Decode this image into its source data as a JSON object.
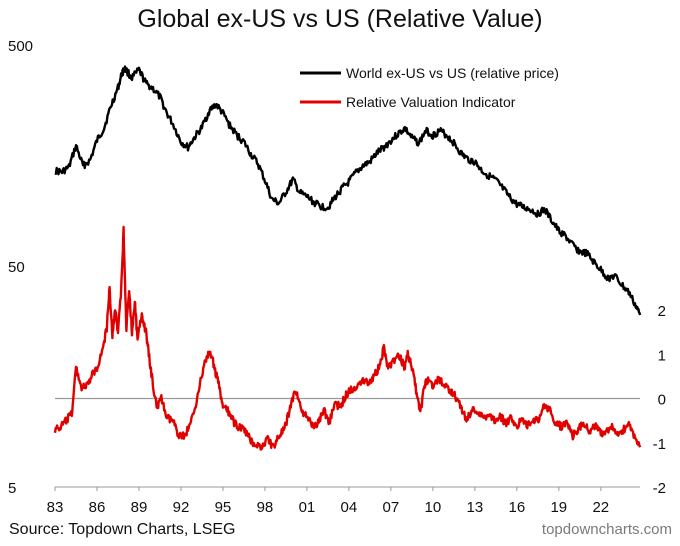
{
  "chart_data": {
    "type": "line",
    "title": "Global ex-US vs US (Relative Value)",
    "source": "Source: Topdown Charts, LSEG",
    "watermark": "topdowncharts.com",
    "x_axis": {
      "ticks": [
        "83",
        "86",
        "89",
        "92",
        "95",
        "98",
        "01",
        "04",
        "07",
        "10",
        "13",
        "16",
        "19",
        "22"
      ],
      "range": [
        1983,
        2024.8
      ]
    },
    "y_left": {
      "scale": "log",
      "range": [
        5,
        500
      ],
      "ticks": [
        "5",
        "50",
        "500"
      ]
    },
    "y_right": {
      "scale": "linear",
      "range": [
        -2,
        2
      ],
      "ticks": [
        "2",
        "1",
        "0",
        "-1",
        "-2"
      ],
      "zero_line": true
    },
    "legend_position": "top-right",
    "series": [
      {
        "name": "World ex-US vs US (relative price)",
        "color": "#000000",
        "axis": "left",
        "points": [
          [
            1983.0,
            135
          ],
          [
            1983.5,
            133
          ],
          [
            1984.0,
            140
          ],
          [
            1984.5,
            175
          ],
          [
            1985.0,
            142
          ],
          [
            1985.5,
            150
          ],
          [
            1986.0,
            185
          ],
          [
            1986.5,
            210
          ],
          [
            1987.0,
            265
          ],
          [
            1987.5,
            320
          ],
          [
            1987.8,
            375
          ],
          [
            1988.0,
            390
          ],
          [
            1988.5,
            355
          ],
          [
            1989.0,
            385
          ],
          [
            1989.5,
            335
          ],
          [
            1990.0,
            318
          ],
          [
            1990.5,
            290
          ],
          [
            1991.0,
            245
          ],
          [
            1991.5,
            215
          ],
          [
            1992.0,
            182
          ],
          [
            1992.5,
            172
          ],
          [
            1993.0,
            192
          ],
          [
            1993.5,
            212
          ],
          [
            1994.0,
            250
          ],
          [
            1994.5,
            270
          ],
          [
            1995.0,
            245
          ],
          [
            1995.5,
            215
          ],
          [
            1996.0,
            195
          ],
          [
            1996.5,
            182
          ],
          [
            1997.0,
            160
          ],
          [
            1997.5,
            145
          ],
          [
            1998.0,
            122
          ],
          [
            1998.5,
            100
          ],
          [
            1999.0,
            96
          ],
          [
            1999.5,
            108
          ],
          [
            2000.0,
            123
          ],
          [
            2000.5,
            107
          ],
          [
            2001.0,
            103
          ],
          [
            2001.5,
            97
          ],
          [
            2002.0,
            93
          ],
          [
            2002.5,
            92
          ],
          [
            2003.0,
            102
          ],
          [
            2003.5,
            112
          ],
          [
            2004.0,
            120
          ],
          [
            2004.5,
            132
          ],
          [
            2005.0,
            142
          ],
          [
            2005.5,
            148
          ],
          [
            2006.0,
            162
          ],
          [
            2006.5,
            172
          ],
          [
            2007.0,
            185
          ],
          [
            2007.5,
            198
          ],
          [
            2008.0,
            210
          ],
          [
            2008.5,
            190
          ],
          [
            2009.0,
            180
          ],
          [
            2009.5,
            205
          ],
          [
            2010.0,
            195
          ],
          [
            2010.5,
            205
          ],
          [
            2011.0,
            195
          ],
          [
            2011.5,
            180
          ],
          [
            2012.0,
            162
          ],
          [
            2012.5,
            152
          ],
          [
            2013.0,
            148
          ],
          [
            2013.5,
            135
          ],
          [
            2014.0,
            128
          ],
          [
            2014.5,
            122
          ],
          [
            2015.0,
            112
          ],
          [
            2015.5,
            102
          ],
          [
            2016.0,
            95
          ],
          [
            2016.5,
            92
          ],
          [
            2017.0,
            90
          ],
          [
            2017.5,
            86
          ],
          [
            2018.0,
            90
          ],
          [
            2018.5,
            80
          ],
          [
            2019.0,
            72
          ],
          [
            2019.5,
            68
          ],
          [
            2020.0,
            62
          ],
          [
            2020.5,
            58
          ],
          [
            2021.0,
            57
          ],
          [
            2021.5,
            52
          ],
          [
            2022.0,
            48
          ],
          [
            2022.5,
            44
          ],
          [
            2023.0,
            45
          ],
          [
            2023.5,
            41
          ],
          [
            2024.0,
            38
          ],
          [
            2024.5,
            33
          ],
          [
            2024.8,
            30
          ]
        ]
      },
      {
        "name": "Relative Valuation Indicator",
        "color": "#e00000",
        "axis": "right",
        "points": [
          [
            1983.0,
            -0.7
          ],
          [
            1983.4,
            -0.65
          ],
          [
            1983.8,
            -0.5
          ],
          [
            1984.2,
            -0.35
          ],
          [
            1984.5,
            0.7
          ],
          [
            1984.9,
            0.25
          ],
          [
            1985.3,
            0.28
          ],
          [
            1985.7,
            0.55
          ],
          [
            1986.0,
            0.7
          ],
          [
            1986.4,
            1.1
          ],
          [
            1986.7,
            1.6
          ],
          [
            1986.9,
            2.5
          ],
          [
            1987.1,
            1.4
          ],
          [
            1987.3,
            2.0
          ],
          [
            1987.5,
            1.5
          ],
          [
            1987.7,
            2.3
          ],
          [
            1987.9,
            3.8
          ],
          [
            1988.1,
            1.6
          ],
          [
            1988.3,
            2.4
          ],
          [
            1988.5,
            1.5
          ],
          [
            1988.7,
            2.2
          ],
          [
            1988.9,
            1.3
          ],
          [
            1989.2,
            1.9
          ],
          [
            1989.5,
            1.5
          ],
          [
            1989.7,
            1.0
          ],
          [
            1990.0,
            0.3
          ],
          [
            1990.3,
            -0.2
          ],
          [
            1990.6,
            0.0
          ],
          [
            1991.0,
            -0.45
          ],
          [
            1991.4,
            -0.5
          ],
          [
            1991.8,
            -0.8
          ],
          [
            1992.2,
            -0.85
          ],
          [
            1992.6,
            -0.65
          ],
          [
            1993.0,
            -0.2
          ],
          [
            1993.4,
            0.4
          ],
          [
            1993.8,
            0.9
          ],
          [
            1994.1,
            1.05
          ],
          [
            1994.4,
            0.7
          ],
          [
            1994.7,
            0.3
          ],
          [
            1995.0,
            -0.2
          ],
          [
            1995.4,
            -0.3
          ],
          [
            1995.8,
            -0.55
          ],
          [
            1996.2,
            -0.65
          ],
          [
            1996.6,
            -0.75
          ],
          [
            1997.0,
            -0.95
          ],
          [
            1997.4,
            -1.05
          ],
          [
            1997.8,
            -1.1
          ],
          [
            1998.2,
            -0.9
          ],
          [
            1998.6,
            -1.1
          ],
          [
            1999.0,
            -0.85
          ],
          [
            1999.4,
            -0.7
          ],
          [
            1999.8,
            -0.2
          ],
          [
            2000.2,
            0.2
          ],
          [
            2000.6,
            -0.25
          ],
          [
            2001.0,
            -0.45
          ],
          [
            2001.4,
            -0.6
          ],
          [
            2001.8,
            -0.55
          ],
          [
            2002.2,
            -0.25
          ],
          [
            2002.6,
            -0.55
          ],
          [
            2003.0,
            -0.1
          ],
          [
            2003.4,
            -0.2
          ],
          [
            2003.8,
            0.1
          ],
          [
            2004.2,
            0.2
          ],
          [
            2004.6,
            0.3
          ],
          [
            2005.0,
            0.45
          ],
          [
            2005.4,
            0.35
          ],
          [
            2005.8,
            0.5
          ],
          [
            2006.2,
            0.75
          ],
          [
            2006.5,
            1.15
          ],
          [
            2006.8,
            0.7
          ],
          [
            2007.2,
            0.85
          ],
          [
            2007.6,
            0.95
          ],
          [
            2008.0,
            0.7
          ],
          [
            2008.2,
            1.05
          ],
          [
            2008.5,
            0.7
          ],
          [
            2008.8,
            0.2
          ],
          [
            2009.1,
            -0.35
          ],
          [
            2009.4,
            0.3
          ],
          [
            2009.7,
            0.45
          ],
          [
            2010.0,
            0.3
          ],
          [
            2010.4,
            0.45
          ],
          [
            2010.8,
            0.3
          ],
          [
            2011.2,
            0.2
          ],
          [
            2011.6,
            0.05
          ],
          [
            2012.0,
            -0.2
          ],
          [
            2012.4,
            -0.5
          ],
          [
            2012.8,
            -0.25
          ],
          [
            2013.2,
            -0.3
          ],
          [
            2013.6,
            -0.45
          ],
          [
            2014.0,
            -0.35
          ],
          [
            2014.4,
            -0.5
          ],
          [
            2014.8,
            -0.4
          ],
          [
            2015.2,
            -0.55
          ],
          [
            2015.6,
            -0.45
          ],
          [
            2016.0,
            -0.6
          ],
          [
            2016.4,
            -0.5
          ],
          [
            2016.8,
            -0.6
          ],
          [
            2017.2,
            -0.5
          ],
          [
            2017.6,
            -0.45
          ],
          [
            2018.0,
            -0.15
          ],
          [
            2018.4,
            -0.3
          ],
          [
            2018.8,
            -0.55
          ],
          [
            2019.2,
            -0.65
          ],
          [
            2019.6,
            -0.55
          ],
          [
            2020.0,
            -0.85
          ],
          [
            2020.4,
            -0.7
          ],
          [
            2020.8,
            -0.55
          ],
          [
            2021.2,
            -0.75
          ],
          [
            2021.6,
            -0.6
          ],
          [
            2022.0,
            -0.8
          ],
          [
            2022.4,
            -0.75
          ],
          [
            2022.8,
            -0.65
          ],
          [
            2023.2,
            -0.85
          ],
          [
            2023.6,
            -0.7
          ],
          [
            2024.0,
            -0.6
          ],
          [
            2024.4,
            -0.85
          ],
          [
            2024.8,
            -1.1
          ]
        ]
      }
    ]
  }
}
